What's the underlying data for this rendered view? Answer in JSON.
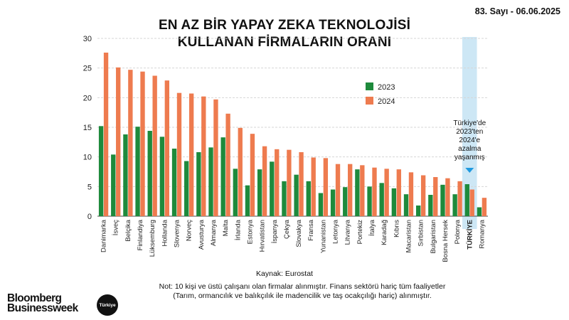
{
  "issue": "83. Sayı - 06.06.2025",
  "title_line1": "EN AZ BİR YAPAY ZEKA TEKNOLOJİSİ",
  "title_line2": "KULLANAN  FİRMALARIN ORANI",
  "source": "Kaynak: Eurostat",
  "note_line1": "Not: 10 kişi ve üstü çalışanı olan firmalar alınmıştır. Finans sektörü hariç tüm faaliyetler",
  "note_line2": "(Tarım, ormancılık ve balıkçılık ile madencilik ve taş ocakçılığı hariç) alınmıştır.",
  "brand_line1": "Bloomberg",
  "brand_line2": "Businessweek",
  "brand_badge": "Türkiye",
  "callout_lines": [
    "Türkiye'de",
    "2023'ten",
    "2024'e",
    "azalma",
    "yaşanmış"
  ],
  "colors": {
    "s2023": "#1e8a3c",
    "s2024": "#ee7b4f",
    "highlight": "#cde7f5",
    "arrow": "#1f9ae0",
    "grid": "#d6d6d6"
  },
  "chart_data": {
    "type": "bar",
    "categories": [
      "Danimarka",
      "İsveç",
      "Belçika",
      "Finlandiya",
      "Lüksemburg",
      "Hollanda",
      "Slovenya",
      "Norveç",
      "Avusturya",
      "Almanya",
      "Malta",
      "İrlanda",
      "Estonya",
      "Hırvatistan",
      "İspanya",
      "Çekya",
      "Slovakya",
      "Fransa",
      "Yunanistan",
      "Letonya",
      "Litvanya",
      "Portekiz",
      "İtalya",
      "Karadağ",
      "Kıbrıs",
      "Macaristan",
      "Sırbistan",
      "Bulgaristan",
      "Bosna Hersek",
      "Polonya",
      "TÜRKİYE",
      "Romanya"
    ],
    "highlight_category": "TÜRKİYE",
    "series": [
      {
        "name": "2023",
        "values": [
          15.2,
          10.4,
          13.8,
          15.1,
          14.4,
          13.4,
          11.4,
          9.3,
          10.8,
          11.6,
          13.3,
          8.0,
          5.2,
          7.9,
          9.2,
          5.9,
          7.0,
          5.9,
          3.9,
          4.5,
          4.9,
          7.9,
          5.0,
          5.6,
          4.7,
          3.7,
          1.8,
          3.6,
          5.3,
          3.7,
          5.4,
          1.5
        ]
      },
      {
        "name": "2024",
        "values": [
          27.6,
          25.1,
          24.7,
          24.4,
          23.7,
          22.9,
          20.8,
          20.7,
          20.2,
          19.7,
          17.3,
          14.9,
          13.9,
          11.8,
          11.3,
          11.2,
          10.8,
          9.9,
          9.8,
          8.8,
          8.8,
          8.6,
          8.2,
          8.0,
          7.9,
          7.4,
          6.9,
          6.6,
          6.4,
          5.9,
          4.5,
          3.1
        ]
      }
    ],
    "ylim": [
      0,
      30
    ],
    "yticks": [
      0,
      5,
      10,
      15,
      20,
      25,
      30
    ],
    "grid": true,
    "legend_position": "right"
  }
}
